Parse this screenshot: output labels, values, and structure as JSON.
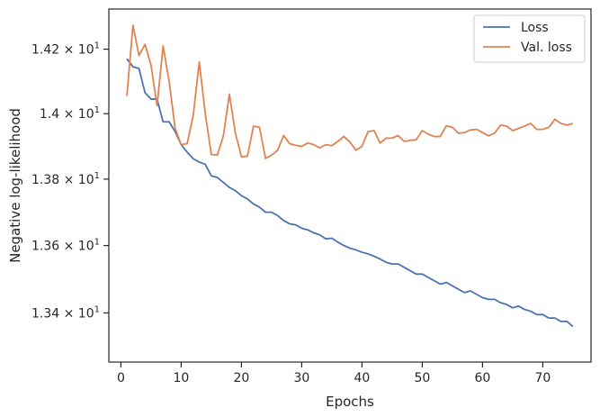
{
  "chart_data": {
    "type": "line",
    "xlabel": "Epochs",
    "ylabel": "Negative log-likelihood",
    "xlim": [
      -2,
      78
    ],
    "ylim": [
      13.256,
      14.326
    ],
    "y_scale": "log",
    "grid": false,
    "legend_position": "top-right",
    "x_ticks": [
      {
        "value": 0,
        "label": "0"
      },
      {
        "value": 10,
        "label": "10"
      },
      {
        "value": 20,
        "label": "20"
      },
      {
        "value": 30,
        "label": "30"
      },
      {
        "value": 40,
        "label": "40"
      },
      {
        "value": 50,
        "label": "50"
      },
      {
        "value": 60,
        "label": "60"
      },
      {
        "value": 70,
        "label": "70"
      }
    ],
    "y_ticks": [
      {
        "value": 13.4,
        "label": "1.34 × 10¹"
      },
      {
        "value": 13.6,
        "label": "1.36 × 10¹"
      },
      {
        "value": 13.8,
        "label": "1.38 × 10¹"
      },
      {
        "value": 14.0,
        "label": "1.4 × 10¹"
      },
      {
        "value": 14.2,
        "label": "1.42 × 10¹"
      }
    ],
    "x": [
      1,
      2,
      3,
      4,
      5,
      6,
      7,
      8,
      9,
      10,
      11,
      12,
      13,
      14,
      15,
      16,
      17,
      18,
      19,
      20,
      21,
      22,
      23,
      24,
      25,
      26,
      27,
      28,
      29,
      30,
      31,
      32,
      33,
      34,
      35,
      36,
      37,
      38,
      39,
      40,
      41,
      42,
      43,
      44,
      45,
      46,
      47,
      48,
      49,
      50,
      51,
      52,
      53,
      54,
      55,
      56,
      57,
      58,
      59,
      60,
      61,
      62,
      63,
      64,
      65,
      66,
      67,
      68,
      69,
      70,
      71,
      72,
      73,
      74,
      75
    ],
    "series": [
      {
        "name": "Loss",
        "color": "#4c72b0",
        "values": [
          14.17,
          14.145,
          14.14,
          14.065,
          14.045,
          14.045,
          13.975,
          13.975,
          13.945,
          13.905,
          13.882,
          13.862,
          13.852,
          13.845,
          13.81,
          13.805,
          13.79,
          13.775,
          13.765,
          13.75,
          13.74,
          13.725,
          13.715,
          13.7,
          13.7,
          13.69,
          13.675,
          13.665,
          13.662,
          13.652,
          13.647,
          13.638,
          13.632,
          13.62,
          13.622,
          13.61,
          13.6,
          13.592,
          13.587,
          13.58,
          13.575,
          13.568,
          13.56,
          13.55,
          13.545,
          13.545,
          13.535,
          13.525,
          13.515,
          13.515,
          13.505,
          13.495,
          13.485,
          13.49,
          13.48,
          13.47,
          13.46,
          13.465,
          13.455,
          13.445,
          13.44,
          13.44,
          13.43,
          13.425,
          13.415,
          13.42,
          13.41,
          13.405,
          13.395,
          13.395,
          13.385,
          13.385,
          13.375,
          13.375,
          13.36
        ]
      },
      {
        "name": "Val. loss",
        "color": "#dd8452",
        "values": [
          14.055,
          14.275,
          14.18,
          14.215,
          14.15,
          14.025,
          14.21,
          14.1,
          13.955,
          13.905,
          13.908,
          13.995,
          14.16,
          14.0,
          13.875,
          13.873,
          13.932,
          14.06,
          13.94,
          13.868,
          13.87,
          13.962,
          13.958,
          13.863,
          13.873,
          13.888,
          13.933,
          13.908,
          13.903,
          13.9,
          13.91,
          13.905,
          13.895,
          13.905,
          13.902,
          13.915,
          13.93,
          13.913,
          13.888,
          13.9,
          13.945,
          13.948,
          13.91,
          13.925,
          13.925,
          13.933,
          13.915,
          13.918,
          13.92,
          13.948,
          13.937,
          13.93,
          13.93,
          13.963,
          13.958,
          13.94,
          13.942,
          13.95,
          13.952,
          13.942,
          13.932,
          13.94,
          13.965,
          13.962,
          13.948,
          13.955,
          13.962,
          13.97,
          13.952,
          13.952,
          13.958,
          13.983,
          13.97,
          13.965,
          13.97
        ]
      }
    ]
  }
}
